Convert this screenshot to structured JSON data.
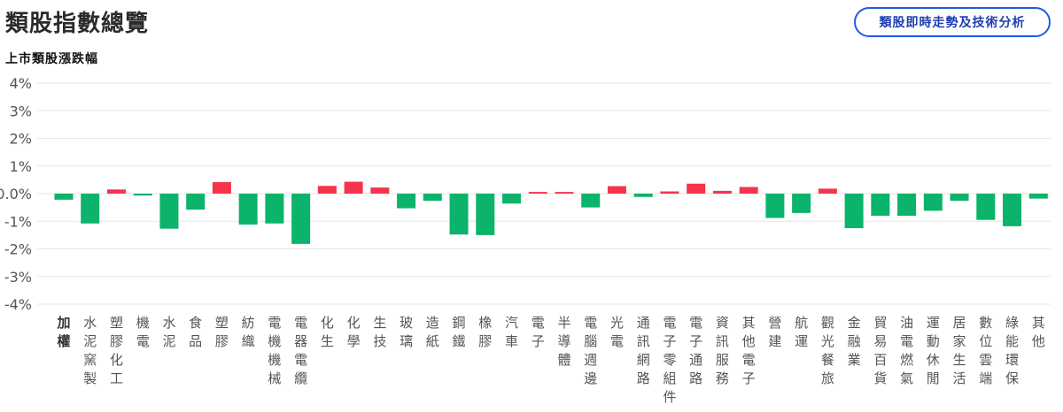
{
  "header": {
    "title": "類股指數總覽",
    "action_label": "類股即時走勢及技術分析"
  },
  "colors": {
    "up": "#f5334a",
    "down": "#0bb36b",
    "grid": "#e6e6e6",
    "label": "#555555"
  },
  "chart_data": {
    "type": "bar",
    "title": "上市類股漲跌幅",
    "ylim": [
      -4,
      4
    ],
    "yticks": [
      4,
      3,
      2,
      1,
      0,
      -1,
      -2,
      -3,
      -4
    ],
    "yticks_labels": [
      "4%",
      "3%",
      "2%",
      "1%",
      "0.0%",
      "-1%",
      "-2%",
      "-3%",
      "-4%"
    ],
    "grid": true,
    "categories": [
      "加權",
      "水泥窯製",
      "塑膠化工",
      "機電",
      "水泥",
      "食品",
      "塑膠",
      "紡織",
      "電機機械",
      "電器電纜",
      "化生",
      "化學",
      "生技",
      "玻璃",
      "造紙",
      "鋼鐵",
      "橡膠",
      "汽車",
      "電子",
      "半導體",
      "電腦週邊",
      "光電",
      "通訊網路",
      "電子零組件",
      "電子通路",
      "資訊服務",
      "其他電子",
      "營建",
      "航運",
      "觀光餐旅",
      "金融業",
      "貿易百貨",
      "油電燃氣",
      "運動休閒",
      "居家生活",
      "數位雲端",
      "綠能環保",
      "其他"
    ],
    "values": [
      -0.22,
      -1.08,
      0.15,
      -0.07,
      -1.27,
      -0.58,
      0.42,
      -1.12,
      -1.08,
      -1.82,
      0.28,
      0.43,
      0.22,
      -0.53,
      -0.26,
      -1.48,
      -1.5,
      -0.36,
      0.06,
      0.06,
      -0.5,
      0.27,
      -0.12,
      0.08,
      0.36,
      0.1,
      0.24,
      -0.88,
      -0.7,
      0.18,
      -1.25,
      -0.8,
      -0.8,
      -0.62,
      -0.26,
      -0.95,
      -1.18,
      -0.18
    ]
  }
}
